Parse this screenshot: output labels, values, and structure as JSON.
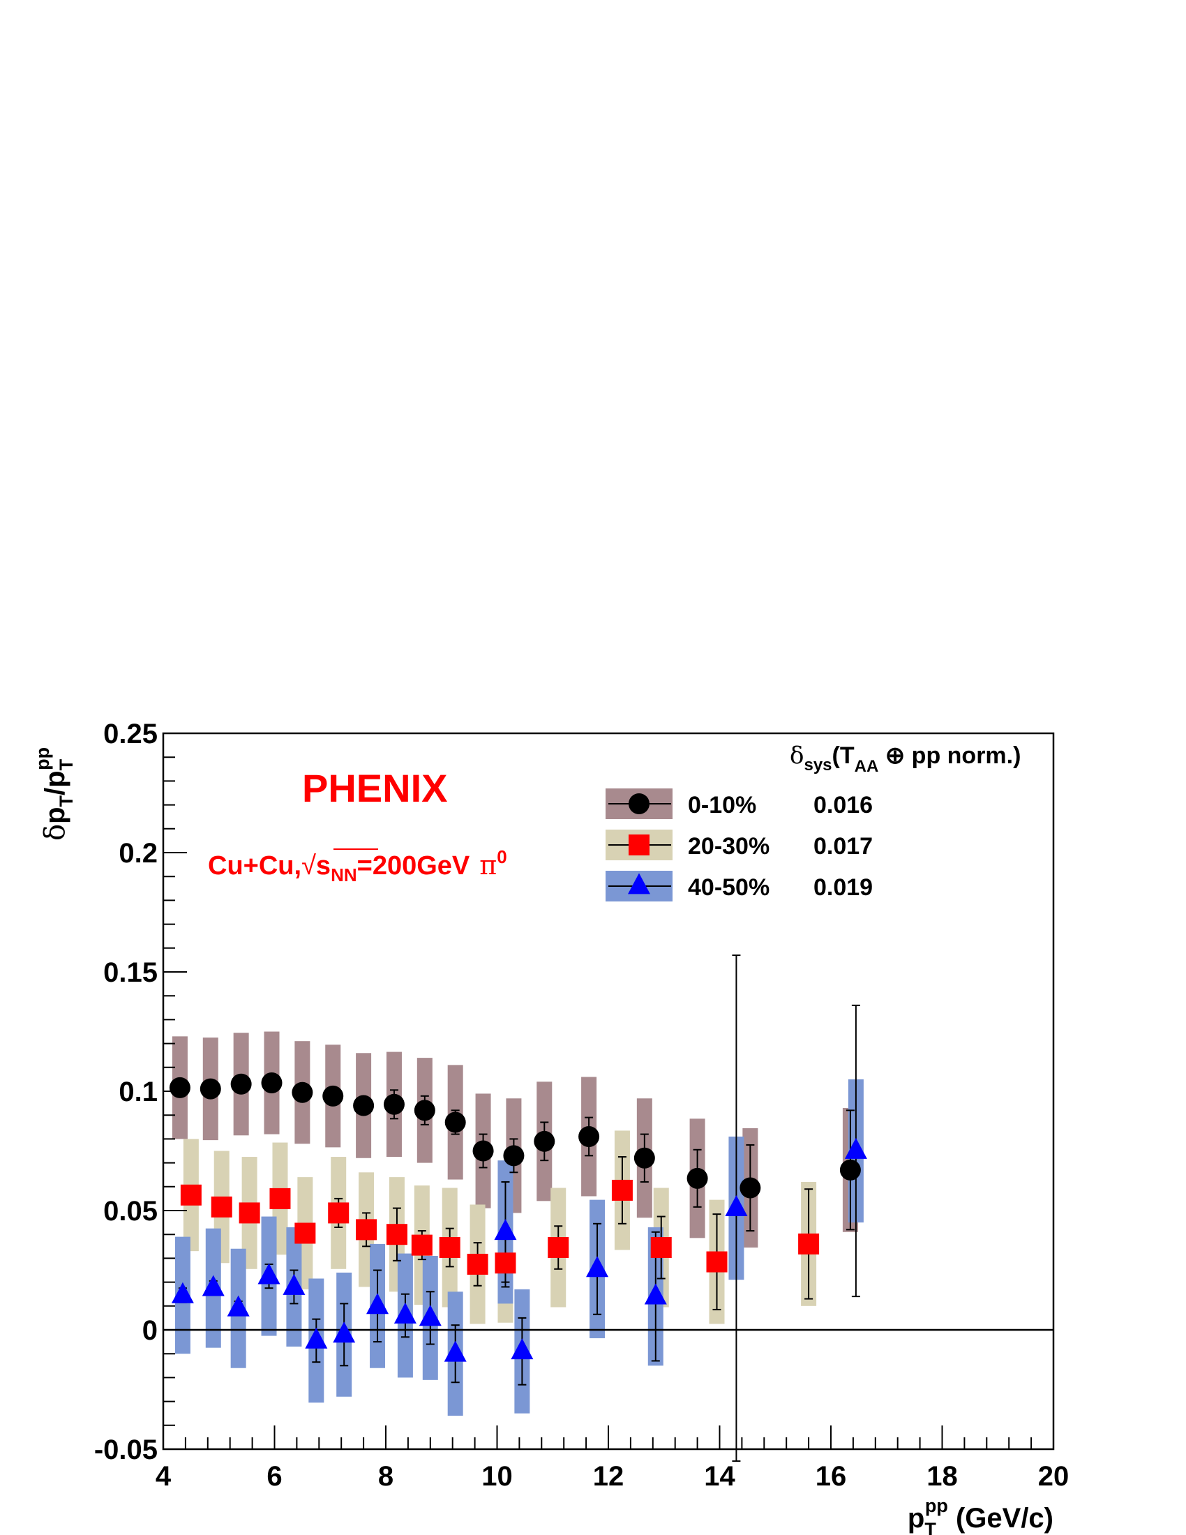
{
  "chart_data": {
    "type": "scatter",
    "experiment": "PHENIX",
    "system": {
      "collision": "Cu+Cu,",
      "sqrt_sign": "√",
      "s": "s",
      "s_sub": "NN",
      "energy": "=200GeV",
      "particle": "π",
      "particle_sup": "0"
    },
    "xlabel": {
      "main": "p",
      "sub": "T",
      "sup": "pp",
      "unit": " (GeV/c)"
    },
    "ylabel": {
      "delta": "δ",
      "p1": "p",
      "sub1": "T",
      "slash": "/p",
      "sub2": "T",
      "sup2": "pp"
    },
    "xlim": [
      4,
      20
    ],
    "ylim": [
      -0.05,
      0.25
    ],
    "xticks": [
      "4",
      "6",
      "8",
      "10",
      "12",
      "14",
      "16",
      "18",
      "20"
    ],
    "yticks": [
      "-0.05",
      "0",
      "0.05",
      "0.1",
      "0.15",
      "0.2",
      "0.25"
    ],
    "reference_line_y": 0,
    "grid": false,
    "legend": {
      "position": "top-right",
      "header": {
        "delta": "δ",
        "sub": "sys",
        "open": "(T",
        "sub2": "AA",
        "rest": " ⊕ pp norm.)"
      }
    },
    "series": [
      {
        "name": "0-10%",
        "legend_value": "0.016",
        "marker": "circle",
        "color": "#000000",
        "band_color": "#a88a8e",
        "points": [
          {
            "x": 4.3,
            "y": 0.1015,
            "stat": 0.002,
            "sys": 0.0215
          },
          {
            "x": 4.85,
            "y": 0.101,
            "stat": 0.002,
            "sys": 0.0215
          },
          {
            "x": 5.4,
            "y": 0.103,
            "stat": 0.002,
            "sys": 0.0215
          },
          {
            "x": 5.95,
            "y": 0.1035,
            "stat": 0.002,
            "sys": 0.0215
          },
          {
            "x": 6.5,
            "y": 0.0995,
            "stat": 0.002,
            "sys": 0.0215
          },
          {
            "x": 7.05,
            "y": 0.098,
            "stat": 0.002,
            "sys": 0.0215
          },
          {
            "x": 7.6,
            "y": 0.094,
            "stat": 0.003,
            "sys": 0.022
          },
          {
            "x": 8.15,
            "y": 0.0945,
            "stat": 0.006,
            "sys": 0.022
          },
          {
            "x": 8.7,
            "y": 0.092,
            "stat": 0.006,
            "sys": 0.022
          },
          {
            "x": 9.25,
            "y": 0.087,
            "stat": 0.005,
            "sys": 0.024
          },
          {
            "x": 9.75,
            "y": 0.075,
            "stat": 0.007,
            "sys": 0.024
          },
          {
            "x": 10.3,
            "y": 0.073,
            "stat": 0.007,
            "sys": 0.024
          },
          {
            "x": 10.85,
            "y": 0.079,
            "stat": 0.008,
            "sys": 0.025
          },
          {
            "x": 11.65,
            "y": 0.081,
            "stat": 0.008,
            "sys": 0.025
          },
          {
            "x": 12.65,
            "y": 0.072,
            "stat": 0.01,
            "sys": 0.025
          },
          {
            "x": 13.6,
            "y": 0.0635,
            "stat": 0.012,
            "sys": 0.025
          },
          {
            "x": 14.55,
            "y": 0.0595,
            "stat": 0.018,
            "sys": 0.025
          },
          {
            "x": 16.35,
            "y": 0.067,
            "stat": 0.025,
            "sys": 0.026
          }
        ]
      },
      {
        "name": "20-30%",
        "legend_value": "0.017",
        "marker": "square",
        "color": "#ff0000",
        "band_color": "#d8d2b4",
        "points": [
          {
            "x": 4.5,
            "y": 0.0565,
            "stat": 0.002,
            "sys": 0.0235
          },
          {
            "x": 5.05,
            "y": 0.0515,
            "stat": 0.002,
            "sys": 0.0235
          },
          {
            "x": 5.55,
            "y": 0.049,
            "stat": 0.002,
            "sys": 0.0235
          },
          {
            "x": 6.1,
            "y": 0.055,
            "stat": 0.002,
            "sys": 0.0235
          },
          {
            "x": 6.55,
            "y": 0.0405,
            "stat": 0.004,
            "sys": 0.0235
          },
          {
            "x": 7.15,
            "y": 0.049,
            "stat": 0.006,
            "sys": 0.0235
          },
          {
            "x": 7.65,
            "y": 0.042,
            "stat": 0.007,
            "sys": 0.024
          },
          {
            "x": 8.2,
            "y": 0.04,
            "stat": 0.011,
            "sys": 0.024
          },
          {
            "x": 8.65,
            "y": 0.0355,
            "stat": 0.006,
            "sys": 0.025
          },
          {
            "x": 9.15,
            "y": 0.0345,
            "stat": 0.008,
            "sys": 0.025
          },
          {
            "x": 9.65,
            "y": 0.0275,
            "stat": 0.009,
            "sys": 0.025
          },
          {
            "x": 10.15,
            "y": 0.028,
            "stat": 0.01,
            "sys": 0.025
          },
          {
            "x": 11.1,
            "y": 0.0345,
            "stat": 0.009,
            "sys": 0.025
          },
          {
            "x": 12.25,
            "y": 0.0585,
            "stat": 0.014,
            "sys": 0.025
          },
          {
            "x": 12.95,
            "y": 0.0345,
            "stat": 0.013,
            "sys": 0.025
          },
          {
            "x": 13.95,
            "y": 0.0285,
            "stat": 0.02,
            "sys": 0.026
          },
          {
            "x": 15.6,
            "y": 0.036,
            "stat": 0.023,
            "sys": 0.026
          }
        ]
      },
      {
        "name": "40-50%",
        "legend_value": "0.019",
        "marker": "triangle",
        "color": "#0000ff",
        "band_color": "#7b97d4",
        "points": [
          {
            "x": 4.35,
            "y": 0.0145,
            "stat": 0.003,
            "sys": 0.0245
          },
          {
            "x": 4.9,
            "y": 0.0175,
            "stat": 0.003,
            "sys": 0.025
          },
          {
            "x": 5.35,
            "y": 0.009,
            "stat": 0.003,
            "sys": 0.025
          },
          {
            "x": 5.9,
            "y": 0.0225,
            "stat": 0.005,
            "sys": 0.025
          },
          {
            "x": 6.35,
            "y": 0.018,
            "stat": 0.007,
            "sys": 0.025
          },
          {
            "x": 6.75,
            "y": -0.0045,
            "stat": 0.009,
            "sys": 0.026
          },
          {
            "x": 7.25,
            "y": -0.002,
            "stat": 0.013,
            "sys": 0.026
          },
          {
            "x": 7.85,
            "y": 0.01,
            "stat": 0.015,
            "sys": 0.026
          },
          {
            "x": 8.35,
            "y": 0.006,
            "stat": 0.009,
            "sys": 0.026
          },
          {
            "x": 8.8,
            "y": 0.005,
            "stat": 0.011,
            "sys": 0.026
          },
          {
            "x": 9.25,
            "y": -0.01,
            "stat": 0.012,
            "sys": 0.026
          },
          {
            "x": 10.15,
            "y": 0.041,
            "stat": 0.021,
            "sys": 0.03
          },
          {
            "x": 10.45,
            "y": -0.009,
            "stat": 0.014,
            "sys": 0.026
          },
          {
            "x": 11.8,
            "y": 0.0255,
            "stat": 0.019,
            "sys": 0.029
          },
          {
            "x": 12.85,
            "y": 0.014,
            "stat": 0.027,
            "sys": 0.029
          },
          {
            "x": 14.3,
            "y": 0.051,
            "stat": 0.106,
            "sys": 0.03
          },
          {
            "x": 16.45,
            "y": 0.075,
            "stat": 0.061,
            "sys": 0.03
          }
        ]
      }
    ]
  }
}
